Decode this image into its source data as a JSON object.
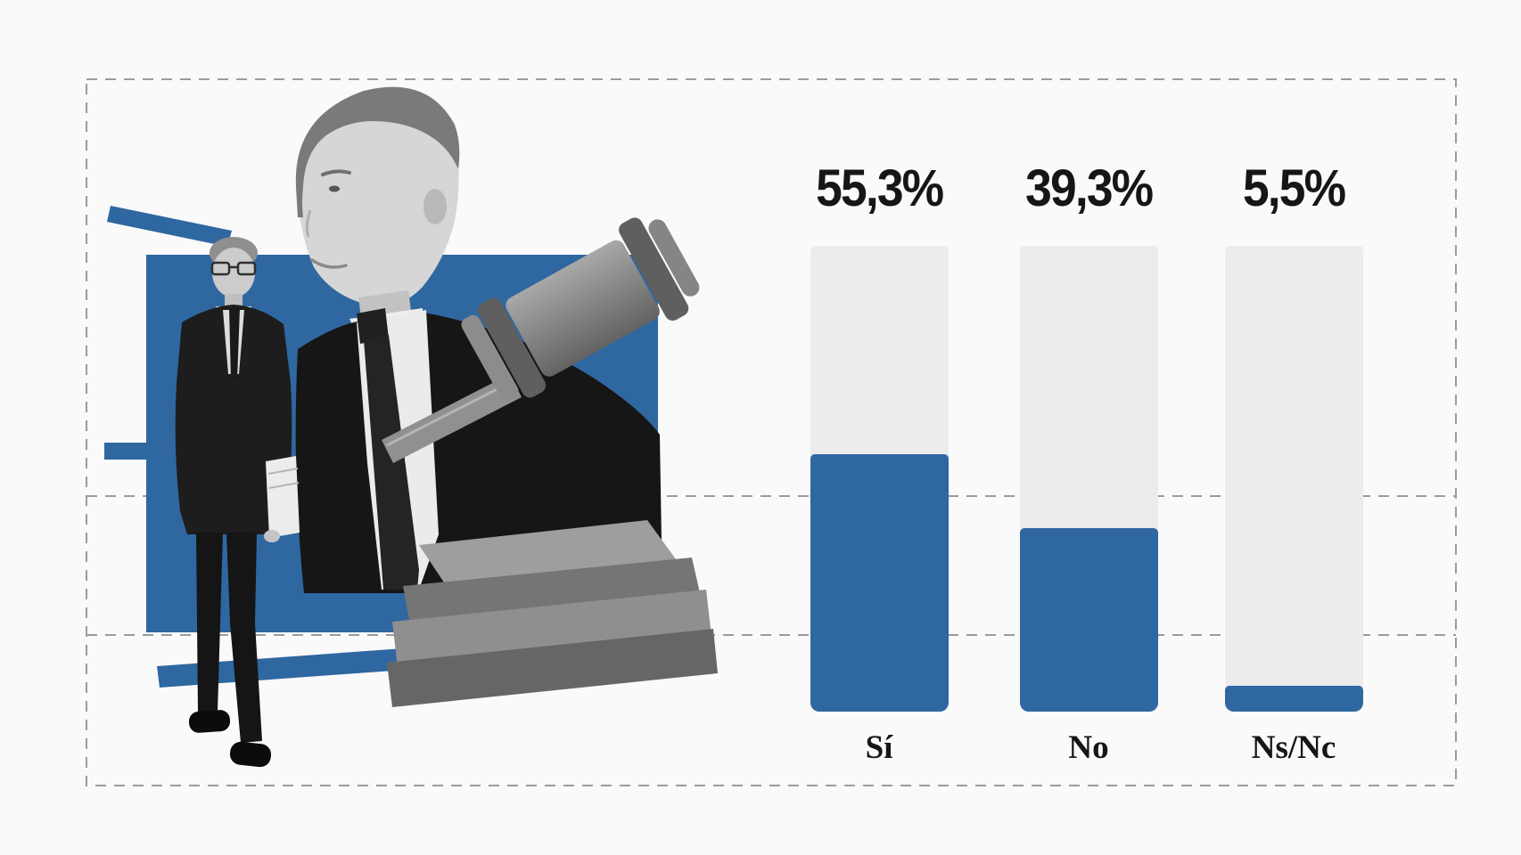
{
  "chart_data": {
    "type": "bar",
    "title": "",
    "categories": [
      "Sí",
      "No",
      "Ns/Nc"
    ],
    "values": [
      55.3,
      39.3,
      5.5
    ],
    "value_labels": [
      "55,3%",
      "39,3%",
      "5,5%"
    ],
    "ylim": [
      0,
      100
    ],
    "legend": "none",
    "grid": "two horizontal dashed reference lines behind bars",
    "bar_color": "#2f67a1",
    "track_color": "#ececec"
  },
  "colors": {
    "background": "#fafafa",
    "accent_blue": "#2f67a1",
    "dashed_line": "#9b9b9b",
    "text": "#161616"
  },
  "collage": {
    "elements": [
      "blue-square-backdrop",
      "blue-brushstrokes",
      "politician-portrait-bw",
      "politician-walking-bw",
      "wooden-gavel-bw",
      "gavel-sound-block-bw"
    ]
  }
}
